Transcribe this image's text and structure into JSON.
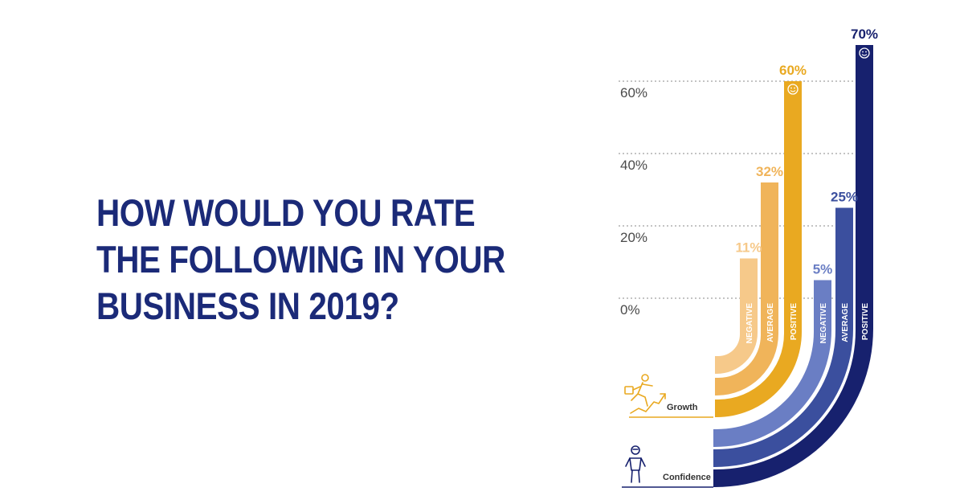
{
  "headline": {
    "lines": [
      "HOW WOULD YOU RATE",
      "THE FOLLOWING IN YOUR",
      "BUSINESS IN 2019?"
    ]
  },
  "colors": {
    "headline": "#1b2a78",
    "growth_negative": "#f6c98a",
    "growth_average": "#f0b45a",
    "growth_positive": "#e9a921",
    "confidence_negative": "#6a7ec4",
    "confidence_average": "#3b4f9e",
    "confidence_positive": "#17216e",
    "gridline": "#888888"
  },
  "icons": {
    "growth": "running-businessman-icon",
    "confidence": "standing-person-icon",
    "positive_marker": "smiley-icon"
  },
  "chart_data": {
    "type": "bar",
    "ylim": [
      0,
      70
    ],
    "yticks": [
      0,
      20,
      40,
      60
    ],
    "ytick_labels": [
      "0%",
      "20%",
      "40%",
      "60%"
    ],
    "grid": true,
    "groups": [
      {
        "name": "Growth",
        "bars": [
          {
            "category": "NEGATIVE",
            "value": 11,
            "label": "11%"
          },
          {
            "category": "AVERAGE",
            "value": 32,
            "label": "32%"
          },
          {
            "category": "POSITIVE",
            "value": 60,
            "label": "60%"
          }
        ]
      },
      {
        "name": "Confidence",
        "bars": [
          {
            "category": "NEGATIVE",
            "value": 5,
            "label": "5%"
          },
          {
            "category": "AVERAGE",
            "value": 25,
            "label": "25%"
          },
          {
            "category": "POSITIVE",
            "value": 70,
            "label": "70%"
          }
        ]
      }
    ]
  }
}
